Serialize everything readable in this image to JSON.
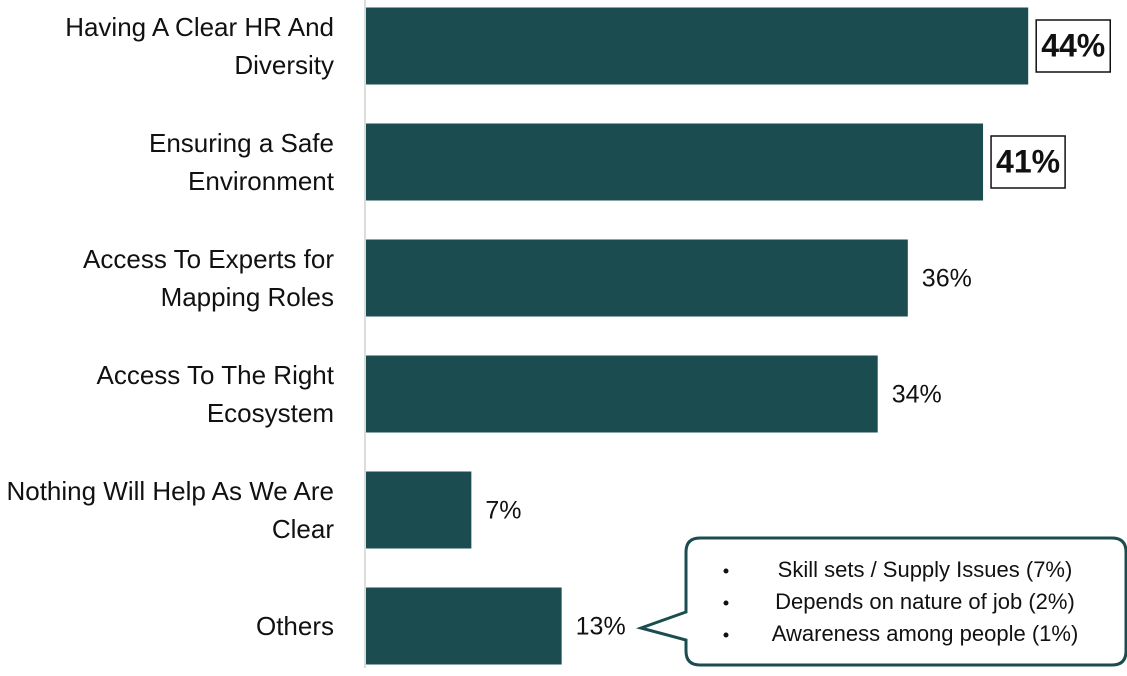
{
  "chart_data": {
    "type": "bar",
    "orientation": "horizontal",
    "categories": [
      "Having A Clear HR And Diversity",
      "Ensuring a Safe Environment",
      "Access To Experts for Mapping Roles",
      "Access To The Right Ecosystem",
      "Nothing Will Help As We Are Clear",
      "Others"
    ],
    "values": [
      44,
      41,
      36,
      34,
      7,
      13
    ],
    "value_labels": [
      "44%",
      "41%",
      "36%",
      "34%",
      "7%",
      "13%"
    ],
    "color": "#1b4d50",
    "annotation": [
      "Skill sets / Supply Issues (7%)",
      "Depends on nature of job (2%)",
      "Awareness among people (1%)"
    ]
  }
}
